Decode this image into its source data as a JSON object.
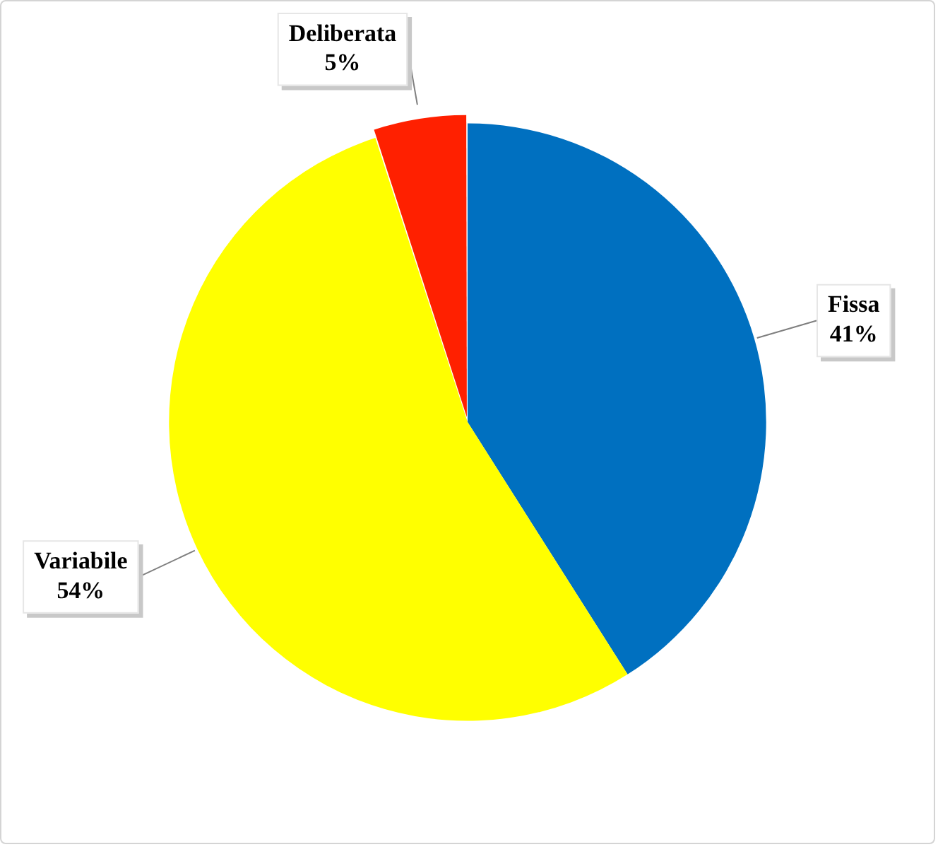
{
  "chart_data": {
    "type": "pie",
    "categories": [
      "Fissa",
      "Variabile",
      "Deliberata"
    ],
    "values": [
      41,
      54,
      5
    ],
    "colors": [
      "#0070c0",
      "#ffff00",
      "#ff2000"
    ],
    "value_labels": [
      "41%",
      "54%",
      "5%"
    ]
  }
}
